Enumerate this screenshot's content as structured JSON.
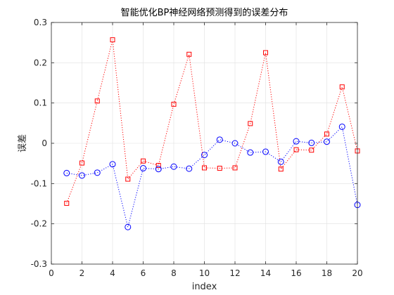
{
  "chart_data": {
    "type": "line",
    "title": "智能优化BP神经网络预测得到的误差分布",
    "xlabel": "index",
    "ylabel": "误差",
    "xlim": [
      0,
      20
    ],
    "ylim": [
      -0.3,
      0.3
    ],
    "xticks": [
      0,
      2,
      4,
      6,
      8,
      10,
      12,
      14,
      16,
      18,
      20
    ],
    "yticks": [
      -0.3,
      -0.2,
      -0.1,
      0,
      0.1,
      0.2,
      0.3
    ],
    "ytick_labels": [
      "-0.3",
      "-0.2",
      "-0.1",
      "0",
      "0.1",
      "0.2",
      "0.3"
    ],
    "grid": true,
    "x": [
      1,
      2,
      3,
      4,
      5,
      6,
      7,
      8,
      9,
      10,
      11,
      12,
      13,
      14,
      15,
      16,
      17,
      18,
      19,
      20
    ],
    "series": [
      {
        "color": "#ff0000",
        "marker": "square",
        "linestyle": "dotted",
        "values": [
          -0.149,
          -0.049,
          0.105,
          0.257,
          -0.089,
          -0.044,
          -0.055,
          0.097,
          0.221,
          -0.061,
          -0.062,
          -0.061,
          0.049,
          0.225,
          -0.064,
          -0.016,
          -0.017,
          0.023,
          0.14,
          -0.019
        ]
      },
      {
        "color": "#0000ff",
        "marker": "circle",
        "linestyle": "dotted",
        "values": [
          -0.074,
          -0.08,
          -0.073,
          -0.052,
          -0.208,
          -0.062,
          -0.064,
          -0.058,
          -0.063,
          -0.029,
          0.009,
          0.0,
          -0.023,
          -0.021,
          -0.046,
          0.005,
          0.001,
          0.004,
          0.041,
          -0.153
        ]
      }
    ]
  }
}
